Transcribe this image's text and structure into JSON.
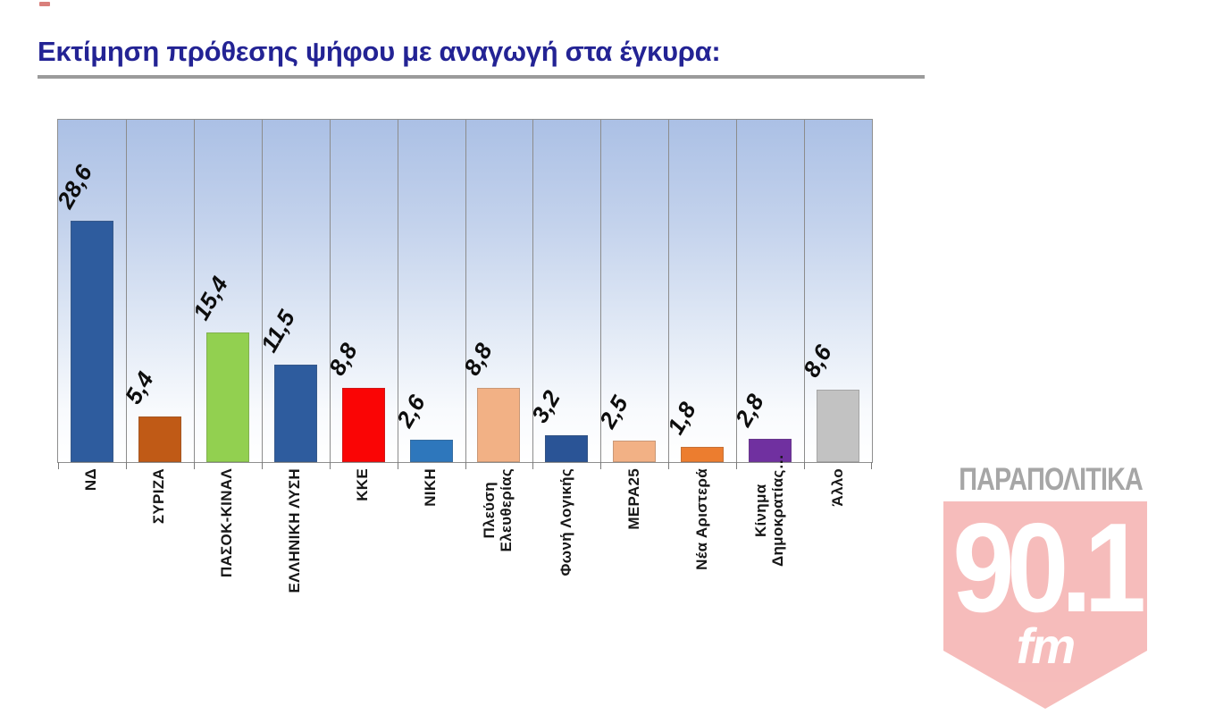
{
  "title": {
    "text": "Εκτίμηση πρόθεσης ψήφου με αναγωγή στα έγκυρα:",
    "color": "#232394",
    "rule_color": "#9b9b9b"
  },
  "artifact_color": "#c43a34",
  "chart_data": {
    "type": "bar",
    "title": "Εκτίμηση πρόθεσης ψήφου με αναγωγή στα έγκυρα:",
    "categories": [
      "ΝΔ",
      "ΣΥΡΙΖΑ",
      "ΠΑΣΟΚ-ΚΙΝΑΛ",
      "ΕΛΛΗΝΙΚΗ ΛΥΣΗ",
      "ΚΚΕ",
      "ΝΙΚΗ",
      "Πλεύση Ελευθερίας",
      "Φωνή Λογικής",
      "ΜΕΡΑ25",
      "Νέα Αριστερά",
      "Κίνημα Δημοκρατίας…",
      "Άλλο"
    ],
    "values": [
      28.6,
      5.4,
      15.4,
      11.5,
      8.8,
      2.6,
      8.8,
      3.2,
      2.5,
      1.8,
      2.8,
      8.6
    ],
    "value_labels": [
      "28,6",
      "5,4",
      "15,4",
      "11,5",
      "8,8",
      "2,6",
      "8,8",
      "3,2",
      "2,5",
      "1,8",
      "2,8",
      "8,6"
    ],
    "category_lines": [
      [
        "ΝΔ"
      ],
      [
        "ΣΥΡΙΖΑ"
      ],
      [
        "ΠΑΣΟΚ-ΚΙΝΑΛ"
      ],
      [
        "ΕΛΛΗΝΙΚΗ ΛΥΣΗ"
      ],
      [
        "ΚΚΕ"
      ],
      [
        "ΝΙΚΗ"
      ],
      [
        "Πλεύση",
        "Ελευθερίας"
      ],
      [
        "Φωνή Λογικής"
      ],
      [
        "ΜΕΡΑ25"
      ],
      [
        "Νέα Αριστερά"
      ],
      [
        "Κίνημα",
        "Δημοκρατίας…"
      ],
      [
        "Άλλο"
      ]
    ],
    "bar_colors": [
      "#2e5c9e",
      "#c05a16",
      "#92d050",
      "#2e5c9e",
      "#fa0505",
      "#2e77bc",
      "#f2b185",
      "#2a5496",
      "#f2b185",
      "#ec7d2f",
      "#7030a0",
      "#c2c2c2"
    ],
    "xlabel": "",
    "ylabel": "",
    "ylim": [
      0,
      40.5
    ],
    "grid": "vertical category separator lines, gray",
    "legend": "none",
    "plot_background": "light blue to white vertical gradient",
    "value_label_style": "bold italic, rotated diagonally above each bar",
    "category_label_style": "bold, rotated 90° reading bottom-to-top"
  },
  "watermark": {
    "brand": "ΠΑΡΑΠΟΛΙΤΙΚΑ",
    "frequency": "90.1",
    "band": "fm",
    "brand_color": "#9d9d9d",
    "badge_color": "#f4aeac"
  }
}
